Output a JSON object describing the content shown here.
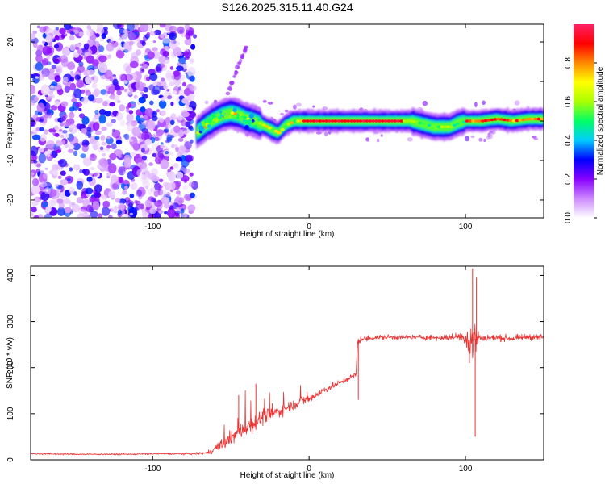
{
  "title": "S126.2025.315.11.40.G24",
  "chart_data": [
    {
      "type": "heatmap",
      "name": "spectrogram",
      "xlabel": "Height of straight line (km)",
      "ylabel": "Frequency (Hz)",
      "xlim": [
        -178,
        150
      ],
      "ylim": [
        -24.5,
        24.5
      ],
      "xticks": [
        -100,
        0,
        100
      ],
      "xtick_labels": [
        "-100",
        "0",
        "100"
      ],
      "yticks": [
        -20,
        -10,
        0,
        10,
        20
      ],
      "ytick_labels": [
        "-20",
        "-10",
        "0",
        "10",
        "20"
      ],
      "ridge": {
        "x": [
          -72,
          -66,
          -60,
          -55,
          -50,
          -45,
          -40,
          -35,
          -30,
          -25,
          -20,
          -15,
          -10,
          -5,
          0,
          20,
          40,
          60,
          65,
          70,
          75,
          80,
          85,
          90,
          95,
          100,
          105,
          110,
          120,
          130,
          140,
          150
        ],
        "freq": [
          -3,
          -1,
          0.5,
          1.5,
          2,
          1.5,
          0.5,
          0,
          -1,
          -2,
          -3,
          -1,
          0,
          0,
          0,
          0,
          0,
          0,
          0,
          -0.5,
          -1,
          -1.5,
          -1.5,
          -1.5,
          -0.5,
          0,
          0,
          0,
          0.5,
          0,
          0.5,
          0.5
        ]
      },
      "noise_region": {
        "x_range": [
          -178,
          -73
        ],
        "freq_range": [
          -24.5,
          24.5
        ]
      },
      "faint_streak": {
        "x": [
          -52,
          -40
        ],
        "freq": [
          7,
          19
        ]
      },
      "colorbar": {
        "label": "Normalized spectral amplitude",
        "range": [
          0,
          1
        ],
        "ticks": [
          0.0,
          0.2,
          0.4,
          0.6,
          0.8
        ],
        "tick_labels": [
          "0.0",
          "0.2",
          "0.4",
          "0.6",
          "0.8"
        ],
        "colors": [
          "#ffffff",
          "#cc88ff",
          "#8800ff",
          "#0000ff",
          "#00ccff",
          "#00ff66",
          "#aaff00",
          "#ffff00",
          "#ff8800",
          "#ff0000",
          "#ff2266"
        ]
      }
    },
    {
      "type": "line",
      "name": "snr",
      "xlabel": "Height of straight line (km)",
      "ylabel": "SNR (10 * v/v)",
      "xlim": [
        -178,
        150
      ],
      "ylim": [
        0,
        420
      ],
      "xticks": [
        -100,
        0,
        100
      ],
      "xtick_labels": [
        "-100",
        "0",
        "100"
      ],
      "yticks": [
        0,
        100,
        200,
        300,
        400
      ],
      "ytick_labels": [
        "0",
        "100",
        "200",
        "300",
        "400"
      ],
      "color": "#ee3333",
      "series": [
        {
          "name": "SNR",
          "x": [
            -178,
            -150,
            -120,
            -90,
            -75,
            -65,
            -60,
            -55,
            -50,
            -45,
            -40,
            -35,
            -30,
            -25,
            -20,
            -15,
            -10,
            -5,
            0,
            5,
            10,
            15,
            20,
            25,
            30,
            31,
            33,
            35,
            40,
            50,
            60,
            70,
            80,
            90,
            95,
            100,
            102,
            104,
            106,
            108,
            110,
            120,
            130,
            140,
            150
          ],
          "values": [
            13,
            12,
            12,
            13,
            13,
            15,
            25,
            35,
            45,
            60,
            72,
            80,
            92,
            98,
            104,
            112,
            120,
            128,
            132,
            142,
            152,
            160,
            168,
            176,
            185,
            255,
            262,
            262,
            265,
            266,
            266,
            266,
            265,
            265,
            268,
            265,
            260,
            255,
            262,
            266,
            264,
            265,
            263,
            267,
            265
          ],
          "noise": [
            3,
            3,
            3,
            3,
            4,
            7,
            14,
            20,
            25,
            30,
            34,
            34,
            30,
            28,
            24,
            22,
            20,
            20,
            18,
            16,
            14,
            12,
            10,
            10,
            10,
            12,
            12,
            11,
            11,
            10,
            10,
            10,
            11,
            12,
            16,
            28,
            60,
            110,
            90,
            30,
            14,
            12,
            12,
            12,
            12
          ]
        }
      ],
      "spikes": [
        {
          "x": 104.5,
          "value": 415
        },
        {
          "x": 106.2,
          "value": 50
        },
        {
          "x": 107,
          "value": 395
        },
        {
          "x": 102.5,
          "value": 210
        },
        {
          "x": -34,
          "value": 165
        },
        {
          "x": -45,
          "value": 140
        },
        {
          "x": 31.5,
          "value": 130
        }
      ]
    }
  ]
}
